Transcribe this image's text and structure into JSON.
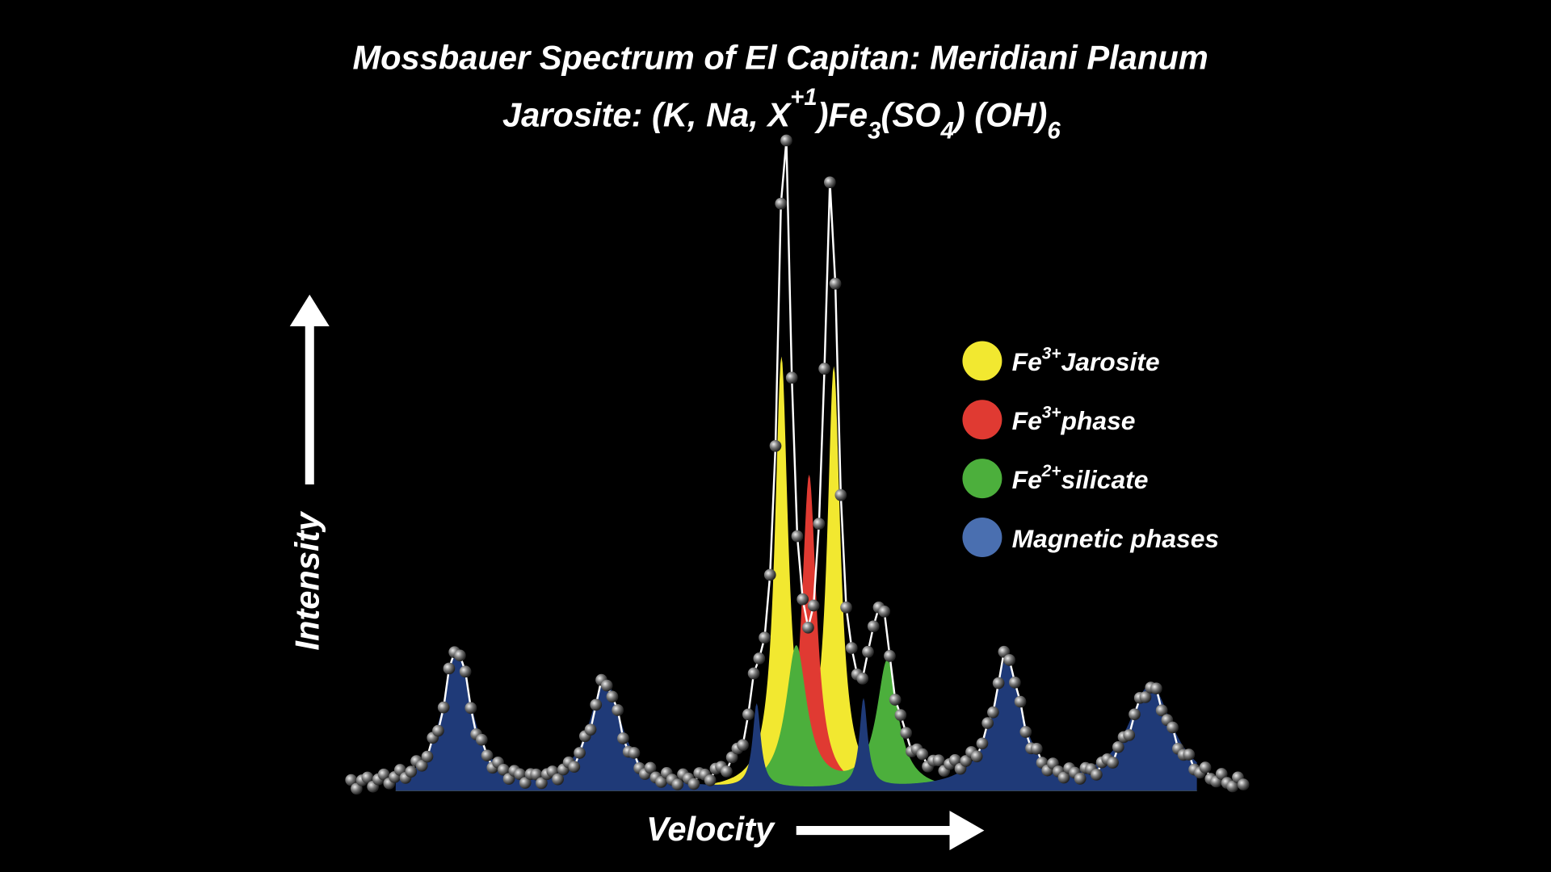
{
  "header": {
    "title": "Mossbauer Spectrum of El Capitan:  Meridiani Planum",
    "formula": [
      "Jarosite: (K, Na, X",
      "+1",
      ")Fe",
      "3",
      "(SO",
      "4",
      ") (OH)",
      "6"
    ]
  },
  "axes": {
    "y_label": "Intensity",
    "x_label": "Velocity"
  },
  "legend": {
    "items": [
      {
        "element": "Fe",
        "charge": "3+",
        "label": "Jarosite",
        "color": "#f2e830"
      },
      {
        "element": "Fe",
        "charge": "3+",
        "label": "phase",
        "color": "#e03a32"
      },
      {
        "element": "Fe",
        "charge": "2+",
        "label": "silicate",
        "color": "#4caf3c"
      },
      {
        "label": "Magnetic phases",
        "color": "#4a6fb0"
      }
    ]
  }
}
